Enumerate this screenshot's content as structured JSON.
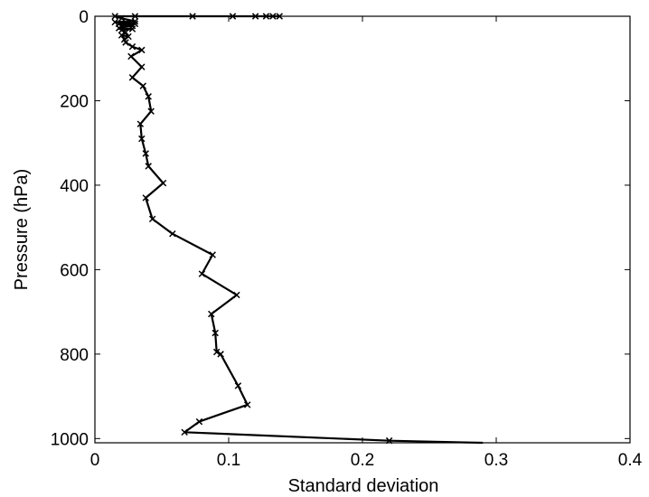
{
  "chart_data": {
    "type": "line",
    "title": "",
    "xlabel": "Standard deviation",
    "ylabel": "Pressure (hPa)",
    "xlim": [
      0,
      0.4
    ],
    "ylim": [
      0,
      1010
    ],
    "y_inverted": true,
    "grid": false,
    "legend": "none",
    "line_color": "#000000",
    "marker": "x",
    "x_ticks": [
      0,
      0.1,
      0.2,
      0.3,
      0.4
    ],
    "x_tick_labels": [
      "0",
      "0.1",
      "0.2",
      "0.3",
      "0.4"
    ],
    "y_ticks": [
      0,
      200,
      400,
      600,
      800,
      1000
    ],
    "y_tick_labels": [
      "0",
      "200",
      "400",
      "600",
      "800",
      "1000"
    ],
    "series": [
      {
        "x": [
          0.138,
          0.133,
          0.128,
          0.12,
          0.103,
          0.073,
          0.03,
          0.015,
          0.02,
          0.03,
          0.015,
          0.03,
          0.018,
          0.028,
          0.02,
          0.018,
          0.028,
          0.02,
          0.023,
          0.02,
          0.025,
          0.022,
          0.023,
          0.028,
          0.035,
          0.027,
          0.035,
          0.028,
          0.036,
          0.04,
          0.042,
          0.034,
          0.035,
          0.038,
          0.04,
          0.051,
          0.038,
          0.043,
          0.058,
          0.088,
          0.08,
          0.106,
          0.087,
          0.09,
          0.091,
          0.094,
          0.107,
          0.114,
          0.078,
          0.067,
          0.22,
          0.29
        ],
        "y": [
          0,
          0,
          0,
          0,
          0,
          0,
          0,
          0,
          5,
          12,
          14,
          18,
          18,
          23,
          25,
          28,
          30,
          33,
          38,
          45,
          48,
          55,
          62,
          72,
          80,
          95,
          120,
          145,
          165,
          190,
          225,
          255,
          290,
          325,
          355,
          395,
          430,
          480,
          515,
          565,
          610,
          660,
          705,
          750,
          795,
          800,
          875,
          920,
          960,
          985,
          1005,
          1010
        ]
      }
    ]
  }
}
